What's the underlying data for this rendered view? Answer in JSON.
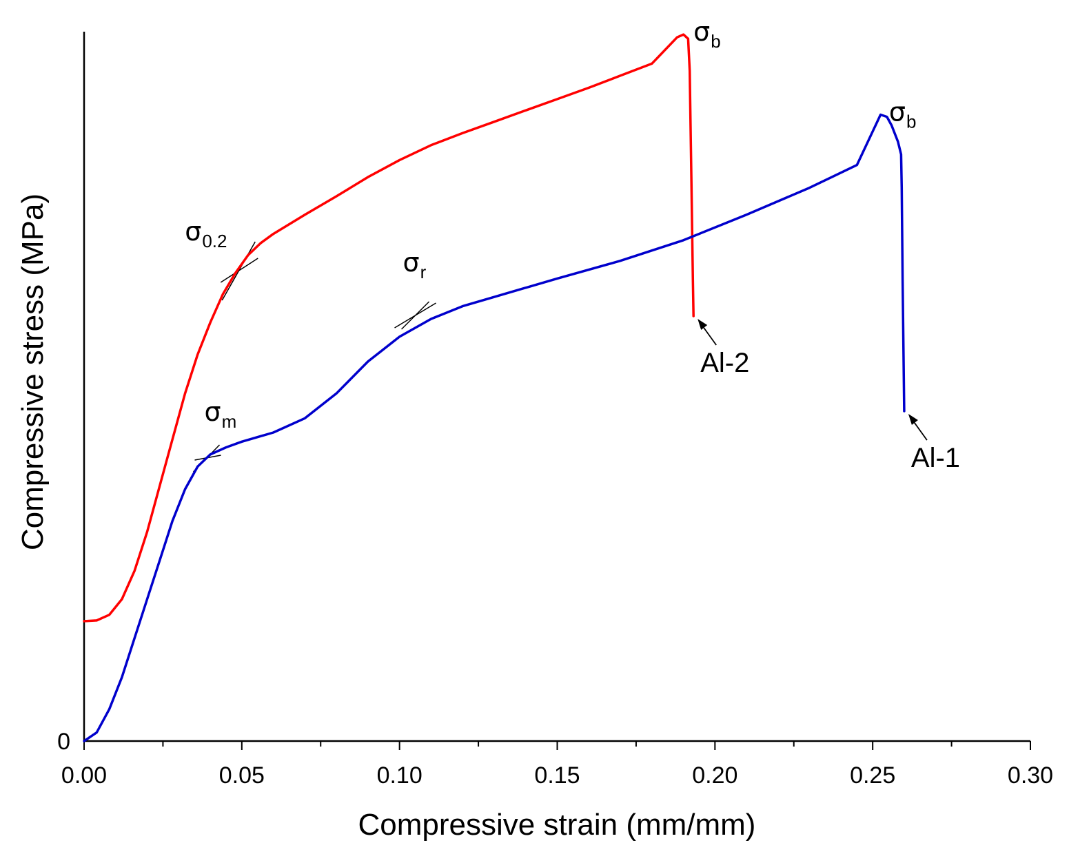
{
  "chart_data": {
    "type": "line",
    "title": "",
    "xlabel": "Compressive strain (mm/mm)",
    "ylabel": "Compressive stress (MPa)",
    "xlim": [
      0.0,
      0.3
    ],
    "ylim": [
      0,
      100
    ],
    "x_ticks": [
      "0.00",
      "0.05",
      "0.10",
      "0.15",
      "0.20",
      "0.25",
      "0.30"
    ],
    "y_ticks": [
      "0"
    ],
    "grid": false,
    "series": [
      {
        "name": "Al-2",
        "color": "#ff0000",
        "points": [
          [
            0.0,
            16.9
          ],
          [
            0.004,
            17.0
          ],
          [
            0.008,
            17.8
          ],
          [
            0.012,
            20.0
          ],
          [
            0.016,
            24.0
          ],
          [
            0.02,
            29.5
          ],
          [
            0.024,
            36.0
          ],
          [
            0.028,
            42.5
          ],
          [
            0.032,
            49.0
          ],
          [
            0.036,
            54.5
          ],
          [
            0.04,
            59.0
          ],
          [
            0.044,
            63.0
          ],
          [
            0.048,
            66.0
          ],
          [
            0.052,
            68.5
          ],
          [
            0.056,
            70.2
          ],
          [
            0.06,
            71.5
          ],
          [
            0.07,
            74.2
          ],
          [
            0.08,
            76.8
          ],
          [
            0.09,
            79.5
          ],
          [
            0.1,
            81.9
          ],
          [
            0.11,
            84.0
          ],
          [
            0.12,
            85.7
          ],
          [
            0.13,
            87.3
          ],
          [
            0.14,
            88.9
          ],
          [
            0.15,
            90.5
          ],
          [
            0.16,
            92.1
          ],
          [
            0.17,
            93.8
          ],
          [
            0.18,
            95.5
          ],
          [
            0.188,
            99.2
          ],
          [
            0.19,
            99.6
          ],
          [
            0.1915,
            99.0
          ],
          [
            0.192,
            94.5
          ],
          [
            0.1925,
            80.0
          ],
          [
            0.193,
            65.0
          ],
          [
            0.1932,
            59.9
          ]
        ]
      },
      {
        "name": "Al-1",
        "color": "#0000cc",
        "points": [
          [
            0.0,
            0.0
          ],
          [
            0.004,
            1.2
          ],
          [
            0.008,
            4.5
          ],
          [
            0.012,
            9.0
          ],
          [
            0.016,
            14.5
          ],
          [
            0.02,
            20.0
          ],
          [
            0.024,
            25.5
          ],
          [
            0.028,
            31.0
          ],
          [
            0.032,
            35.5
          ],
          [
            0.036,
            38.7
          ],
          [
            0.04,
            40.4
          ],
          [
            0.045,
            41.4
          ],
          [
            0.05,
            42.2
          ],
          [
            0.06,
            43.5
          ],
          [
            0.07,
            45.5
          ],
          [
            0.08,
            49.0
          ],
          [
            0.09,
            53.5
          ],
          [
            0.1,
            57.0
          ],
          [
            0.11,
            59.5
          ],
          [
            0.12,
            61.3
          ],
          [
            0.13,
            62.6
          ],
          [
            0.15,
            65.2
          ],
          [
            0.17,
            67.7
          ],
          [
            0.19,
            70.6
          ],
          [
            0.21,
            74.2
          ],
          [
            0.23,
            78.0
          ],
          [
            0.245,
            81.2
          ],
          [
            0.2525,
            88.3
          ],
          [
            0.2545,
            88.0
          ],
          [
            0.256,
            86.8
          ],
          [
            0.258,
            84.5
          ],
          [
            0.259,
            82.7
          ],
          [
            0.2592,
            78.0
          ],
          [
            0.2595,
            65.0
          ],
          [
            0.26,
            46.5
          ]
        ]
      }
    ],
    "annotations": [
      {
        "text": "σ",
        "sub": "0.2",
        "x": 0.049,
        "y": 66.5
      },
      {
        "text": "σ",
        "sub": "m",
        "x": 0.039,
        "y": 40.0
      },
      {
        "text": "σ",
        "sub": "r",
        "x": 0.105,
        "y": 60.0
      },
      {
        "text": "σ",
        "sub": "b",
        "x": 0.191,
        "y": 99.7
      },
      {
        "text": "σ",
        "sub": "b",
        "x": 0.253,
        "y": 88.4
      }
    ],
    "series_labels": [
      {
        "text": "Al-2",
        "x": 0.1932,
        "y": 59.9
      },
      {
        "text": "Al-1",
        "x": 0.26,
        "y": 46.5
      }
    ]
  }
}
